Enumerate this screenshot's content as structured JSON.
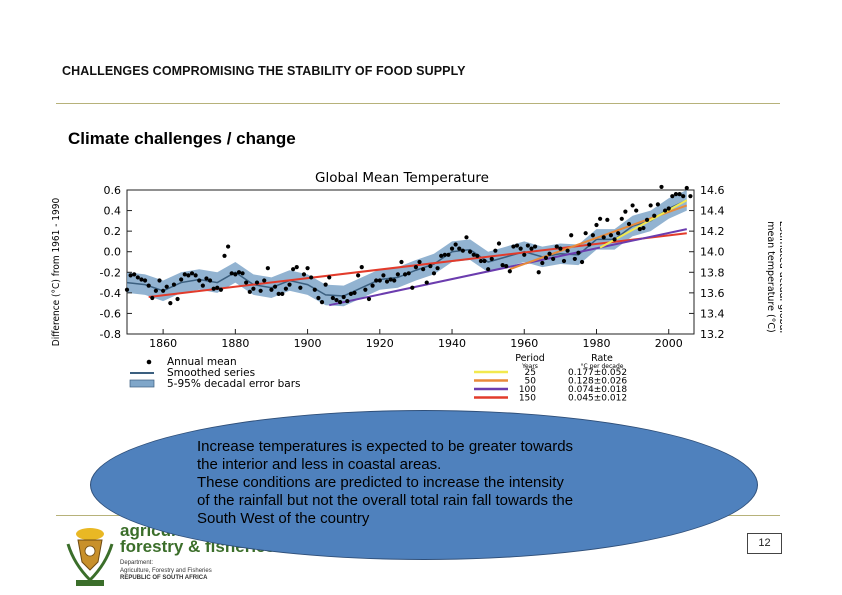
{
  "header": {
    "title": "CHALLENGES COMPROMISING THE STABILITY OF FOOD SUPPLY"
  },
  "subtitle": "Climate challenges / change",
  "chart_data": {
    "type": "scatter",
    "title": "Global Mean Temperature",
    "ylabel": "Difference (°C) from 1961 - 1990",
    "y2label": "Estimated actual global mean temperature (°C)",
    "xlim": [
      1850,
      2007
    ],
    "ylim": [
      -0.8,
      0.6
    ],
    "y2lim": [
      13.2,
      14.6
    ],
    "x_ticks": [
      1860,
      1880,
      1900,
      1920,
      1940,
      1960,
      1980,
      2000
    ],
    "y_ticks": [
      "0.6",
      "0.4",
      "0.2",
      "0.0",
      "-0.2",
      "-0.4",
      "-0.6",
      "-0.8"
    ],
    "y2_ticks": [
      "14.6",
      "14.4",
      "14.2",
      "14.0",
      "13.8",
      "13.6",
      "13.4",
      "13.2"
    ],
    "annual_x": [
      1850,
      1851,
      1852,
      1853,
      1854,
      1855,
      1856,
      1857,
      1858,
      1859,
      1860,
      1861,
      1862,
      1863,
      1864,
      1865,
      1866,
      1867,
      1868,
      1869,
      1870,
      1871,
      1872,
      1873,
      1874,
      1875,
      1876,
      1877,
      1878,
      1879,
      1880,
      1881,
      1882,
      1883,
      1884,
      1885,
      1886,
      1887,
      1888,
      1889,
      1890,
      1891,
      1892,
      1893,
      1894,
      1895,
      1896,
      1897,
      1898,
      1899,
      1900,
      1901,
      1902,
      1903,
      1904,
      1905,
      1906,
      1907,
      1908,
      1909,
      1910,
      1911,
      1912,
      1913,
      1914,
      1915,
      1916,
      1917,
      1918,
      1919,
      1920,
      1921,
      1922,
      1923,
      1924,
      1925,
      1926,
      1927,
      1928,
      1929,
      1930,
      1931,
      1932,
      1933,
      1934,
      1935,
      1936,
      1937,
      1938,
      1939,
      1940,
      1941,
      1942,
      1943,
      1944,
      1945,
      1946,
      1947,
      1948,
      1949,
      1950,
      1951,
      1952,
      1953,
      1954,
      1955,
      1956,
      1957,
      1958,
      1959,
      1960,
      1961,
      1962,
      1963,
      1964,
      1965,
      1966,
      1967,
      1968,
      1969,
      1970,
      1971,
      1972,
      1973,
      1974,
      1975,
      1976,
      1977,
      1978,
      1979,
      1980,
      1981,
      1982,
      1983,
      1984,
      1985,
      1986,
      1987,
      1988,
      1989,
      1990,
      1991,
      1992,
      1993,
      1994,
      1995,
      1996,
      1997,
      1998,
      1999,
      2000,
      2001,
      2002,
      2003,
      2004,
      2005,
      2006
    ],
    "annual_values": [
      -0.37,
      -0.23,
      -0.22,
      -0.25,
      -0.27,
      -0.28,
      -0.33,
      -0.45,
      -0.38,
      -0.28,
      -0.38,
      -0.34,
      -0.5,
      -0.32,
      -0.46,
      -0.27,
      -0.22,
      -0.23,
      -0.21,
      -0.23,
      -0.28,
      -0.33,
      -0.26,
      -0.28,
      -0.36,
      -0.35,
      -0.37,
      -0.04,
      0.05,
      -0.21,
      -0.22,
      -0.2,
      -0.21,
      -0.3,
      -0.39,
      -0.36,
      -0.3,
      -0.38,
      -0.28,
      -0.16,
      -0.37,
      -0.34,
      -0.41,
      -0.41,
      -0.36,
      -0.32,
      -0.17,
      -0.15,
      -0.35,
      -0.22,
      -0.16,
      -0.25,
      -0.37,
      -0.45,
      -0.49,
      -0.32,
      -0.25,
      -0.45,
      -0.47,
      -0.49,
      -0.44,
      -0.48,
      -0.41,
      -0.4,
      -0.23,
      -0.15,
      -0.37,
      -0.46,
      -0.33,
      -0.28,
      -0.28,
      -0.23,
      -0.29,
      -0.27,
      -0.28,
      -0.22,
      -0.1,
      -0.22,
      -0.21,
      -0.35,
      -0.15,
      -0.1,
      -0.17,
      -0.3,
      -0.14,
      -0.21,
      -0.16,
      -0.04,
      -0.03,
      -0.03,
      0.03,
      0.07,
      0.03,
      0.01,
      0.14,
      0.0,
      -0.03,
      -0.04,
      -0.09,
      -0.09,
      -0.17,
      -0.07,
      0.01,
      0.08,
      -0.13,
      -0.14,
      -0.19,
      0.05,
      0.06,
      0.03,
      -0.03,
      0.06,
      0.03,
      0.05,
      -0.2,
      -0.11,
      -0.06,
      -0.02,
      -0.07,
      0.05,
      0.03,
      -0.09,
      0.01,
      0.16,
      -0.07,
      -0.01,
      -0.1,
      0.18,
      0.07,
      0.16,
      0.26,
      0.32,
      0.14,
      0.31,
      0.16,
      0.12,
      0.18,
      0.32,
      0.39,
      0.27,
      0.45,
      0.4,
      0.22,
      0.23,
      0.31,
      0.45,
      0.35,
      0.46,
      0.63,
      0.4,
      0.42,
      0.54,
      0.56,
      0.56,
      0.54,
      0.62,
      0.54
    ],
    "smoothed_x": [
      1850,
      1855,
      1860,
      1865,
      1870,
      1875,
      1880,
      1885,
      1890,
      1895,
      1900,
      1905,
      1910,
      1915,
      1920,
      1925,
      1930,
      1935,
      1940,
      1945,
      1950,
      1955,
      1960,
      1965,
      1970,
      1975,
      1980,
      1985,
      1990,
      1995,
      2000,
      2005
    ],
    "smoothed_values": [
      -0.3,
      -0.32,
      -0.38,
      -0.3,
      -0.27,
      -0.3,
      -0.2,
      -0.32,
      -0.35,
      -0.28,
      -0.32,
      -0.42,
      -0.43,
      -0.35,
      -0.27,
      -0.25,
      -0.18,
      -0.12,
      0.0,
      0.02,
      -0.1,
      -0.05,
      0.0,
      -0.05,
      -0.02,
      -0.03,
      0.12,
      0.12,
      0.25,
      0.3,
      0.42,
      0.5
    ],
    "band_halfwidth": 0.1,
    "trends": [
      {
        "color": "#e23b2b",
        "x": [
          1856,
          2005
        ],
        "y": [
          -0.44,
          0.18
        ]
      },
      {
        "color": "#6b3cae",
        "x": [
          1906,
          2005
        ],
        "y": [
          -0.52,
          0.22
        ]
      },
      {
        "color": "#e88a3a",
        "x": [
          1956,
          2005
        ],
        "y": [
          -0.17,
          0.45
        ]
      },
      {
        "color": "#f2e94e",
        "x": [
          1981,
          2005
        ],
        "y": [
          0.04,
          0.5
        ]
      }
    ],
    "legend_left": [
      {
        "label": "Annual mean",
        "marker": "dot"
      },
      {
        "label": "Smoothed series",
        "marker": "line"
      },
      {
        "label": "5-95% decadal error bars",
        "marker": "band"
      }
    ],
    "legend_right": {
      "header_period": "Period",
      "header_rate": "Rate",
      "sub_period": "Years",
      "sub_rate": "°C per decade",
      "rows": [
        {
          "color": "#f2e94e",
          "period": "25",
          "rate": "0.177±0.052"
        },
        {
          "color": "#e88a3a",
          "period": "50",
          "rate": "0.128±0.026"
        },
        {
          "color": "#6b3cae",
          "period": "100",
          "rate": "0.074±0.018"
        },
        {
          "color": "#e23b2b",
          "period": "150",
          "rate": "0.045±0.012"
        }
      ]
    }
  },
  "callout": {
    "lines": [
      "Increase temperatures is expected to be greater towards",
      "the interior and less in coastal areas.",
      "These conditions are predicted to increase the intensity",
      "of the rainfall but not the overall total rain fall towards the",
      "South West of the country"
    ]
  },
  "logo": {
    "line1": "agriculture",
    "line2": "forestry & fisheries",
    "dept1": "Department:",
    "dept2": "Agriculture, Forestry and Fisheries",
    "dept3": "REPUBLIC OF SOUTH AFRICA"
  },
  "page_number": "12",
  "colors": {
    "band": "#7fa6c9",
    "smoothed": "#3b5f7f",
    "rule": "#b7b27a",
    "callout": "#4f81bd",
    "logo_green": "#3b6e2a"
  }
}
